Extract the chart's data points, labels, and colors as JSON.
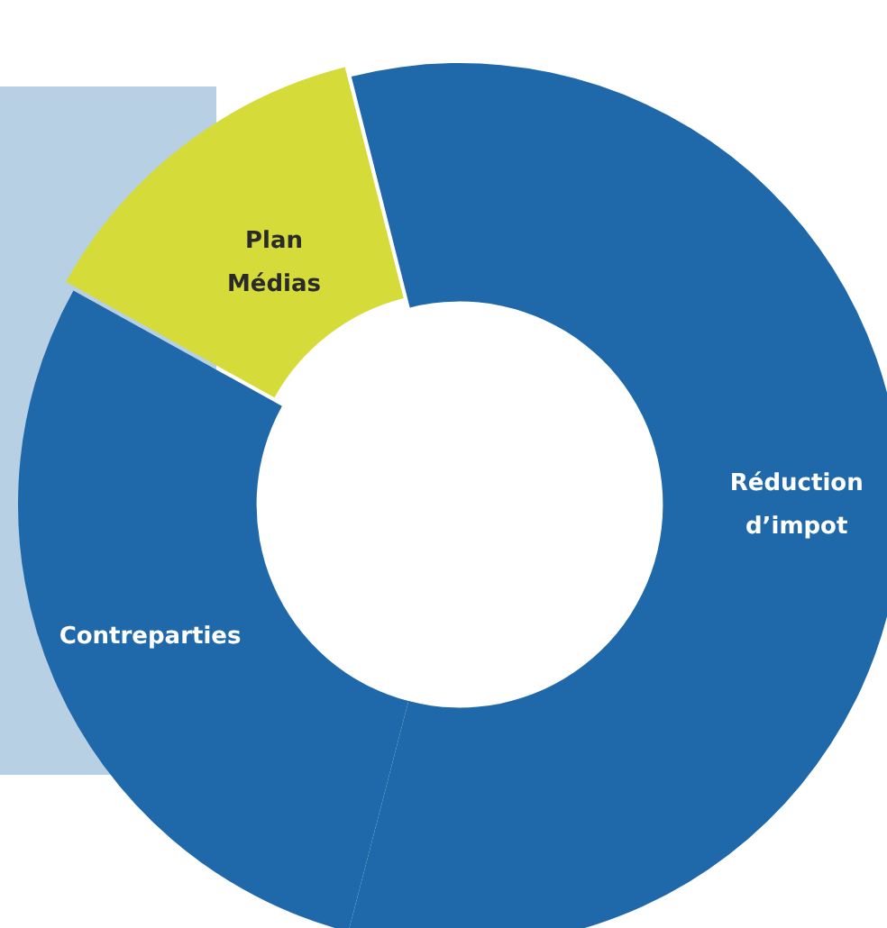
{
  "chart_data": {
    "type": "donut",
    "categories": [
      "Plan Médias",
      "Réduction d’impot",
      "Contreparties"
    ],
    "values": [
      13,
      58,
      29
    ],
    "colors": [
      "#d5db38",
      "#1f69aa",
      "#1f69aa"
    ],
    "legend": false
  }
}
